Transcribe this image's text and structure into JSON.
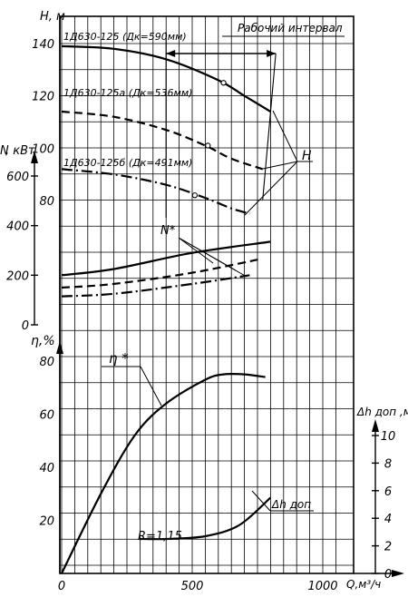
{
  "chart_data": {
    "type": "line",
    "x": {
      "label": "Q, м³/ч",
      "ticks": [
        0,
        500,
        1000
      ],
      "range": [
        0,
        1050
      ]
    },
    "head_axis": {
      "label": "H, м",
      "ticks": [
        80,
        100,
        120,
        140
      ],
      "range": [
        58,
        146
      ]
    },
    "power_axis": {
      "label": "N, кВт",
      "ticks": [
        0,
        200,
        400,
        600
      ],
      "range": [
        0,
        600
      ]
    },
    "efficiency_axis": {
      "label": "η,%",
      "ticks": [
        0,
        20,
        40,
        60,
        80
      ],
      "range": [
        0,
        85
      ]
    },
    "npsh_axis": {
      "label": "Δh доп ,м",
      "ticks": [
        0,
        2,
        4,
        6,
        8,
        10
      ],
      "range": [
        0,
        10
      ]
    },
    "grid": true,
    "series": {
      "head": [
        {
          "name": "1Д630-125 (Дк=590мм)",
          "style": "solid",
          "points": [
            [
              0,
              139
            ],
            [
              200,
              138
            ],
            [
              400,
              134
            ],
            [
              600,
              126
            ],
            [
              700,
              120
            ],
            [
              800,
              114
            ]
          ]
        },
        {
          "name": "1Д630-125а (Дк=536мм)",
          "style": "dashed",
          "points": [
            [
              0,
              114
            ],
            [
              200,
              112
            ],
            [
              400,
              107
            ],
            [
              550,
              101
            ],
            [
              650,
              96
            ],
            [
              770,
              92
            ]
          ]
        },
        {
          "name": "1Д630-125б (Дк=491мм)",
          "style": "dashdot",
          "points": [
            [
              0,
              92
            ],
            [
              200,
              90
            ],
            [
              400,
              86
            ],
            [
              550,
              81
            ],
            [
              650,
              77
            ],
            [
              720,
              75
            ]
          ]
        }
      ],
      "head_markers": [
        [
          620,
          125
        ],
        [
          560,
          101
        ],
        [
          510,
          82
        ]
      ],
      "power": [
        {
          "style": "solid",
          "points": [
            [
              0,
              200
            ],
            [
              200,
              225
            ],
            [
              500,
              290
            ],
            [
              800,
              335
            ]
          ]
        },
        {
          "style": "dashed",
          "points": [
            [
              0,
              150
            ],
            [
              200,
              165
            ],
            [
              500,
              210
            ],
            [
              760,
              265
            ]
          ]
        },
        {
          "style": "dashdot",
          "points": [
            [
              0,
              115
            ],
            [
              200,
              125
            ],
            [
              500,
              165
            ],
            [
              720,
              200
            ]
          ]
        }
      ],
      "efficiency": [
        [
          0,
          0
        ],
        [
          150,
          30
        ],
        [
          280,
          52
        ],
        [
          400,
          64
        ],
        [
          550,
          73
        ],
        [
          620,
          75
        ],
        [
          700,
          75
        ],
        [
          780,
          74
        ]
      ],
      "npsh": [
        [
          300,
          2.5
        ],
        [
          400,
          2.5
        ],
        [
          550,
          2.7
        ],
        [
          680,
          3.5
        ],
        [
          800,
          5.5
        ]
      ]
    },
    "annotations": {
      "working_interval": "Рабочий интервал",
      "head_label": "H",
      "power_label": "N*",
      "efficiency_label": "η *",
      "npsh_label": "Δh доп",
      "ratio": "R=1,15"
    }
  },
  "labels": {
    "head_axis": "H, м",
    "power_axis": ", кВт",
    "power_axis_letter": "N",
    "efficiency_axis": "η,%",
    "npsh_axis": "Δh доп ,м",
    "x_axis": "Q,м³/ч",
    "curve_1": "1Д630-125 (Дк=590мм)",
    "curve_2": "1Д630-125а (Дк=536мм)",
    "curve_3": "1Д630-125б (Дк=491мм)",
    "working_interval": "Рабочий интервал",
    "head_label": "H",
    "power_label": "N*",
    "efficiency_label": "η *",
    "npsh_label": "Δh доп",
    "ratio": "R=1,15"
  }
}
